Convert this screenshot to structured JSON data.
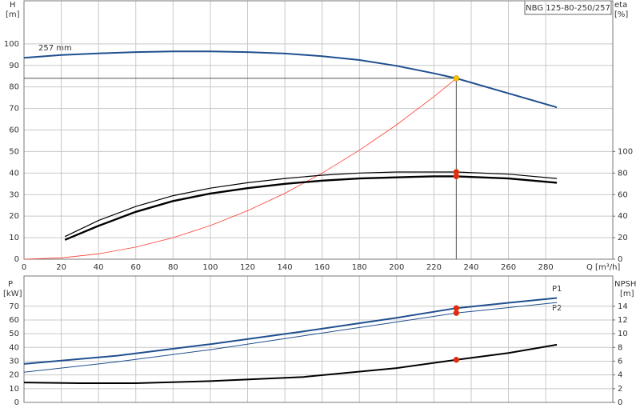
{
  "chart_data": [
    {
      "type": "line",
      "title": "NBG 125-80-250/257",
      "y_label": "H",
      "y_unit": "[m]",
      "y2_label": "eta",
      "y2_unit": "[%]",
      "x_label": "Q [m³/h]",
      "annotation": "257 mm",
      "xlim": [
        0,
        316
      ],
      "ylim": [
        0,
        120
      ],
      "y2lim": [
        0,
        240
      ],
      "xticks": [
        0,
        20,
        40,
        60,
        80,
        100,
        120,
        140,
        160,
        180,
        200,
        220,
        240,
        260,
        280
      ],
      "yticks": [
        0,
        10,
        20,
        30,
        40,
        50,
        60,
        70,
        80,
        90,
        100
      ],
      "y2ticks": [
        0,
        20,
        40,
        60,
        80,
        100
      ],
      "grid": true,
      "show_xtick_labels": true,
      "series": [
        {
          "color": "#1f4f8f",
          "width": 2,
          "x": [
            0,
            20,
            40,
            60,
            80,
            100,
            120,
            140,
            160,
            180,
            200,
            220,
            232,
            260,
            286
          ],
          "values": [
            93.5,
            94.8,
            95.6,
            96.2,
            96.5,
            96.5,
            96.2,
            95.5,
            94.3,
            92.5,
            89.8,
            86.3,
            84,
            77,
            70.5
          ]
        },
        {
          "color": "#ff3b30",
          "width": 0.8,
          "x": [
            0,
            20,
            40,
            60,
            80,
            100,
            120,
            140,
            160,
            180,
            200,
            220,
            232
          ],
          "values": [
            0,
            0.62,
            2.5,
            5.6,
            10,
            15.6,
            22.5,
            30.6,
            40,
            50.6,
            62.4,
            75.5,
            84
          ]
        },
        {
          "color": "#000000",
          "width": 1.2,
          "axis": "y2",
          "x": [
            22,
            40,
            60,
            80,
            100,
            120,
            140,
            160,
            180,
            200,
            220,
            232,
            260,
            286
          ],
          "values": [
            21,
            36,
            49,
            59,
            66,
            71,
            75,
            78,
            80,
            81,
            81,
            81,
            79,
            75
          ]
        },
        {
          "color": "#000000",
          "width": 2.4,
          "axis": "y2",
          "x": [
            22,
            40,
            60,
            80,
            100,
            120,
            140,
            160,
            180,
            200,
            220,
            232,
            260,
            286
          ],
          "values": [
            18,
            31,
            44,
            54,
            61,
            66,
            70,
            73,
            75,
            76,
            77,
            77,
            75,
            71
          ]
        }
      ],
      "markers": [
        {
          "x": 232,
          "y": 84,
          "color": "#f5c400",
          "guide": true
        },
        {
          "x": 232,
          "y": 81,
          "axis": "y2",
          "color": "#e8231c"
        },
        {
          "x": 232,
          "y": 77,
          "axis": "y2",
          "color": "#e8231c"
        }
      ]
    },
    {
      "type": "line",
      "y_label": "P",
      "y_unit": "[kW]",
      "y2_label": "NPSH",
      "y2_unit": "[m]",
      "xlim": [
        0,
        316
      ],
      "ylim": [
        0,
        92
      ],
      "y2lim": [
        0,
        18.4
      ],
      "xticks": [
        0,
        20,
        40,
        60,
        80,
        100,
        120,
        140,
        160,
        180,
        200,
        220,
        240,
        260,
        280
      ],
      "yticks": [
        0,
        10,
        20,
        30,
        40,
        50,
        60,
        70
      ],
      "y2ticks": [
        0,
        2,
        4,
        6,
        8,
        10,
        12,
        14
      ],
      "grid": true,
      "show_xtick_labels": false,
      "series": [
        {
          "name": "P1",
          "color": "#1f4f8f",
          "width": 2,
          "x": [
            0,
            50,
            100,
            150,
            200,
            232,
            260,
            286
          ],
          "values": [
            28,
            34,
            42.4,
            51.7,
            61.6,
            68.6,
            72.5,
            76
          ]
        },
        {
          "name": "P2",
          "color": "#1f4f8f",
          "width": 1,
          "x": [
            0,
            50,
            100,
            150,
            200,
            232,
            260,
            286
          ],
          "values": [
            22,
            29.5,
            38.4,
            48.5,
            58.5,
            65.1,
            69,
            72.7
          ]
        },
        {
          "color": "#000000",
          "width": 2,
          "axis": "y2",
          "x": [
            0,
            30,
            60,
            100,
            150,
            200,
            232,
            260,
            286
          ],
          "values": [
            2.9,
            2.8,
            2.8,
            3.1,
            3.7,
            5,
            6.2,
            7.2,
            8.4
          ]
        }
      ],
      "markers": [
        {
          "x": 232,
          "y": 68.6,
          "color": "#e8231c"
        },
        {
          "x": 232,
          "y": 65.1,
          "color": "#e8231c"
        },
        {
          "x": 232,
          "y": 6.2,
          "axis": "y2",
          "color": "#e8231c"
        }
      ]
    }
  ]
}
